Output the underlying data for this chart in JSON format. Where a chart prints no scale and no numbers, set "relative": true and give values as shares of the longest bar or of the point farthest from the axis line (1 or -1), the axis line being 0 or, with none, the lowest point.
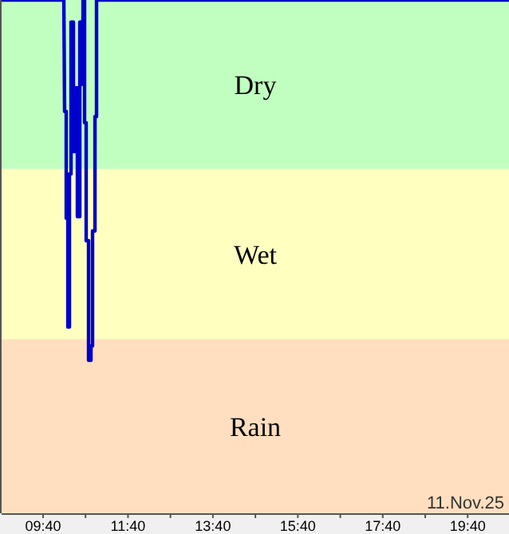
{
  "chart_data": {
    "type": "line",
    "relative": true,
    "x": [
      8.69,
      10.156,
      10.174,
      10.212,
      10.212,
      10.25,
      10.25,
      10.287,
      10.287,
      10.325,
      10.325,
      10.381,
      10.381,
      10.438,
      10.438,
      10.475,
      10.475,
      10.532,
      10.532,
      10.569,
      10.569,
      10.607,
      10.607,
      10.644,
      10.644,
      10.682,
      10.682,
      10.738,
      10.738,
      10.795,
      10.795,
      10.832,
      10.832,
      10.889,
      10.889,
      10.926,
      10.926,
      20.64
    ],
    "series": [
      {
        "color": "#0000cc",
        "values": [
          1,
          1,
          0.783,
          0.783,
          0.575,
          0.575,
          0.363,
          0.363,
          0.661,
          0.661,
          0.957,
          0.957,
          0.705,
          0.705,
          0.829,
          0.829,
          0.578,
          0.578,
          0.957,
          0.957,
          0.835,
          0.969,
          1,
          1,
          0.761,
          0.761,
          0.531,
          0.531,
          0.298,
          0.298,
          0.326,
          0.326,
          0.55,
          0.55,
          0.773,
          0.773,
          1,
          1
        ]
      }
    ],
    "xlim": [
      8.69,
      20.64
    ],
    "xticks": [
      {
        "value": 9.667,
        "label": "09:40"
      },
      {
        "value": 10.667,
        "label": null
      },
      {
        "value": 11.667,
        "label": "11:40"
      },
      {
        "value": 12.667,
        "label": null
      },
      {
        "value": 13.667,
        "label": "13:40"
      },
      {
        "value": 14.667,
        "label": null
      },
      {
        "value": 15.667,
        "label": "15:40"
      },
      {
        "value": 16.667,
        "label": null
      },
      {
        "value": 17.667,
        "label": "17:40"
      },
      {
        "value": 18.667,
        "label": null
      },
      {
        "value": 19.667,
        "label": "19:40"
      }
    ],
    "bands": [
      {
        "axis": "y",
        "from": 0.671,
        "to": 1,
        "label": "Dry",
        "color": "#c0ffc0"
      },
      {
        "axis": "y",
        "from": 0.339,
        "to": 0.671,
        "label": "Wet",
        "color": "#ffffc0"
      },
      {
        "axis": "y",
        "from": 0,
        "to": 0.339,
        "label": "Rain",
        "color": "#ffdfc0"
      }
    ],
    "annotations": [
      "11.Nov.25"
    ],
    "grid": false,
    "line_style": "solid",
    "marker": "none"
  }
}
